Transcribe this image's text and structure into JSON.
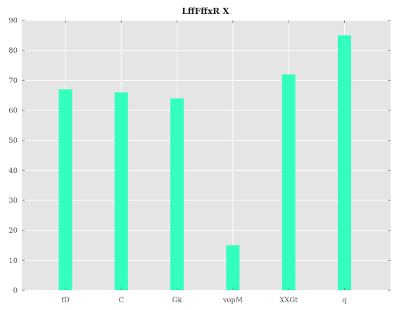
{
  "chart_data": {
    "type": "bar",
    "title": "LffFffxR X",
    "xlabel": "",
    "ylabel": "",
    "categories": [
      "fD",
      "C",
      "Gk",
      "vopM",
      "XXGt",
      "q"
    ],
    "values": [
      67,
      66,
      64,
      15,
      72,
      85
    ],
    "ylim": [
      0,
      90
    ],
    "yticks": [
      0,
      10,
      20,
      30,
      40,
      50,
      60,
      70,
      80,
      90
    ],
    "grid": true,
    "legend": "none",
    "colors": {
      "bar": "#33ffbe",
      "plot_background": "#e5e5e5",
      "grid": "#ffffff",
      "tick": "#888888"
    }
  }
}
